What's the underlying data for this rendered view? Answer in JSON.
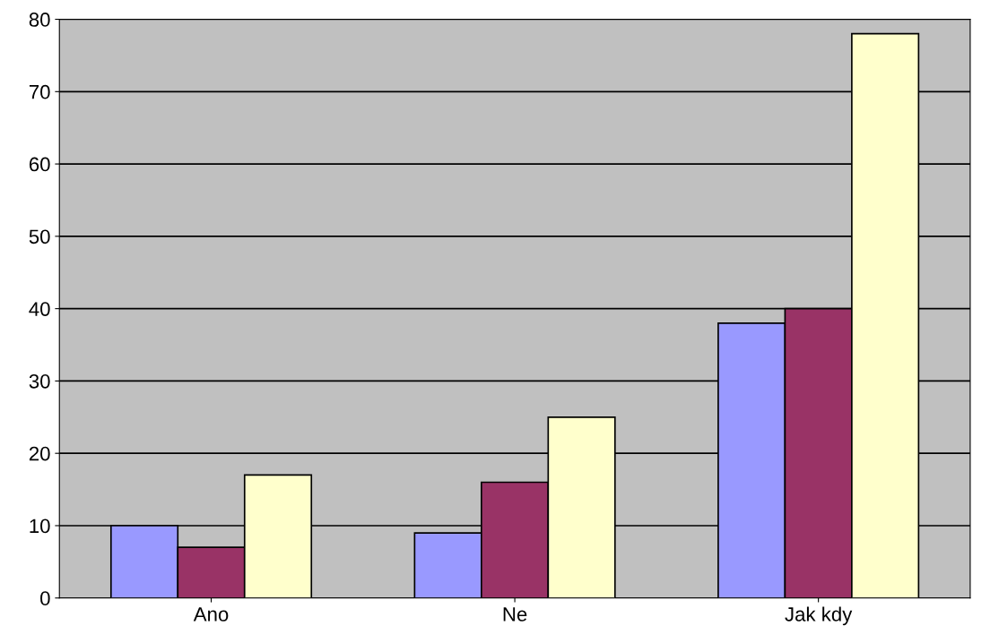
{
  "chart_data": {
    "type": "bar",
    "categories": [
      "Ano",
      "Ne",
      "Jak kdy"
    ],
    "series": [
      {
        "color": "#9999ff",
        "values": [
          10,
          9,
          38
        ]
      },
      {
        "color": "#993366",
        "values": [
          7,
          16,
          40
        ]
      },
      {
        "color": "#ffffcc",
        "values": [
          17,
          25,
          78
        ]
      }
    ],
    "ylim": [
      0,
      80
    ],
    "yticks": [
      0,
      10,
      20,
      30,
      40,
      50,
      60,
      70,
      80
    ],
    "grid": "y",
    "legend": false
  }
}
